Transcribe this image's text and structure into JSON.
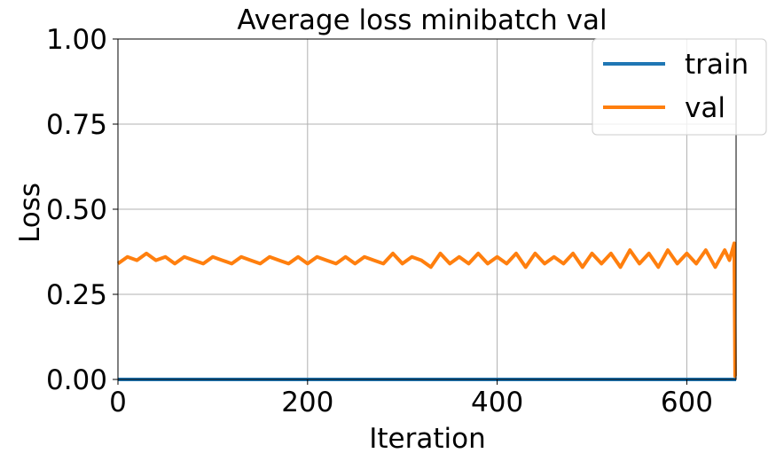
{
  "chart_data": {
    "type": "line",
    "title": "Average loss minibatch val",
    "xlabel": "Iteration",
    "ylabel": "Loss",
    "xlim": [
      0,
      652
    ],
    "ylim": [
      0,
      1
    ],
    "xticks": [
      0,
      200,
      400,
      600
    ],
    "yticks": [
      0,
      0.25,
      0.5,
      0.75,
      1.0
    ],
    "xtick_labels": [
      "0",
      "200",
      "400",
      "600"
    ],
    "ytick_labels": [
      "0.00",
      "0.25",
      "0.50",
      "0.75",
      "1.00"
    ],
    "grid": true,
    "legend": {
      "position": "top-right"
    },
    "series": [
      {
        "name": "train",
        "color": "#1f77b4",
        "x": [
          0,
          652
        ],
        "y": [
          0.0,
          0.0
        ]
      },
      {
        "name": "val",
        "color": "#ff7f0e",
        "x": [
          0,
          10,
          20,
          30,
          40,
          50,
          60,
          70,
          80,
          90,
          100,
          110,
          120,
          130,
          140,
          150,
          160,
          170,
          180,
          190,
          200,
          210,
          220,
          230,
          240,
          250,
          260,
          270,
          280,
          290,
          300,
          310,
          320,
          330,
          340,
          350,
          360,
          370,
          380,
          390,
          400,
          410,
          420,
          430,
          440,
          450,
          460,
          470,
          480,
          490,
          500,
          510,
          520,
          530,
          540,
          550,
          560,
          570,
          580,
          590,
          600,
          610,
          620,
          630,
          640,
          645,
          650,
          651,
          652
        ],
        "y": [
          0.34,
          0.36,
          0.35,
          0.37,
          0.35,
          0.36,
          0.34,
          0.36,
          0.35,
          0.34,
          0.36,
          0.35,
          0.34,
          0.36,
          0.35,
          0.34,
          0.36,
          0.35,
          0.34,
          0.36,
          0.34,
          0.36,
          0.35,
          0.34,
          0.36,
          0.34,
          0.36,
          0.35,
          0.34,
          0.37,
          0.34,
          0.36,
          0.35,
          0.33,
          0.37,
          0.34,
          0.36,
          0.34,
          0.37,
          0.34,
          0.36,
          0.34,
          0.37,
          0.33,
          0.37,
          0.34,
          0.36,
          0.34,
          0.37,
          0.33,
          0.37,
          0.34,
          0.37,
          0.33,
          0.38,
          0.34,
          0.37,
          0.33,
          0.38,
          0.34,
          0.37,
          0.34,
          0.38,
          0.33,
          0.38,
          0.35,
          0.4,
          0.01,
          0.01
        ]
      }
    ]
  }
}
